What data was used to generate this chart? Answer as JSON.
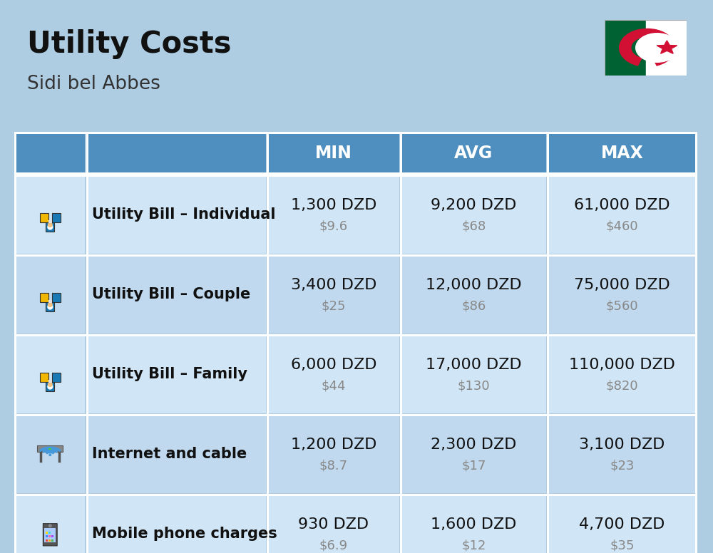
{
  "title": "Utility Costs",
  "subtitle": "Sidi bel Abbes",
  "background_color": "#aecde3",
  "header_bg_color": "#4e8fc0",
  "header_text_color": "#ffffff",
  "row_bg_color_odd": "#d0e5f5",
  "row_bg_color_even": "#c0d9ee",
  "cell_border_color": "#ffffff",
  "rows": [
    {
      "label": "Utility Bill – Individual",
      "min_dzd": "1,300 DZD",
      "min_usd": "$9.6",
      "avg_dzd": "9,200 DZD",
      "avg_usd": "$68",
      "max_dzd": "61,000 DZD",
      "max_usd": "$460",
      "icon_type": "utility"
    },
    {
      "label": "Utility Bill – Couple",
      "min_dzd": "3,400 DZD",
      "min_usd": "$25",
      "avg_dzd": "12,000 DZD",
      "avg_usd": "$86",
      "max_dzd": "75,000 DZD",
      "max_usd": "$560",
      "icon_type": "utility"
    },
    {
      "label": "Utility Bill – Family",
      "min_dzd": "6,000 DZD",
      "min_usd": "$44",
      "avg_dzd": "17,000 DZD",
      "avg_usd": "$130",
      "max_dzd": "110,000 DZD",
      "max_usd": "$820",
      "icon_type": "utility"
    },
    {
      "label": "Internet and cable",
      "min_dzd": "1,200 DZD",
      "min_usd": "$8.7",
      "avg_dzd": "2,300 DZD",
      "avg_usd": "$17",
      "max_dzd": "3,100 DZD",
      "max_usd": "$23",
      "icon_type": "internet"
    },
    {
      "label": "Mobile phone charges",
      "min_dzd": "930 DZD",
      "min_usd": "$6.9",
      "avg_dzd": "1,600 DZD",
      "avg_usd": "$12",
      "max_dzd": "4,700 DZD",
      "max_usd": "$35",
      "icon_type": "phone"
    }
  ],
  "flag_green": "#006233",
  "flag_white": "#ffffff",
  "flag_red": "#d21034"
}
